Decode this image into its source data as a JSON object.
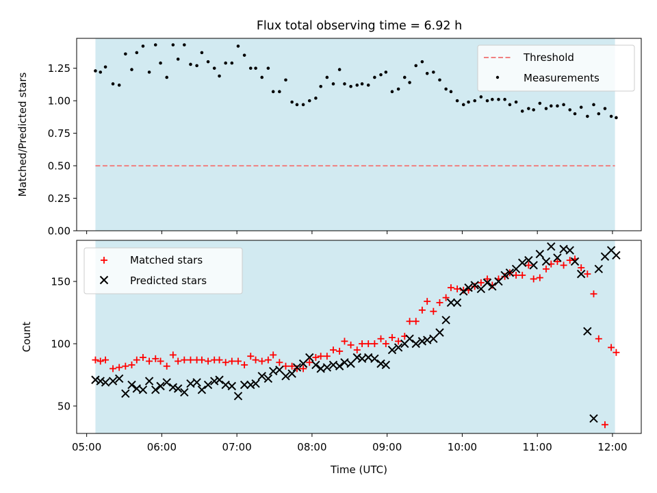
{
  "title": "Flux total observing time = 6.92 h",
  "colors": {
    "shade": "#add8e6",
    "threshold": "#f08080",
    "matched": "#ff0000",
    "predicted": "#000000",
    "measurement": "#000000"
  },
  "chart_data": [
    {
      "type": "scatter",
      "title": "Flux total observing time = 6.92 h",
      "xlabel": "",
      "ylabel": "Matched/Predicted stars",
      "xlim": [
        "04:52",
        "12:23"
      ],
      "ylim": [
        0,
        1.48
      ],
      "yticks": [
        0.0,
        0.25,
        0.5,
        0.75,
        1.0,
        1.25
      ],
      "ytick_labels": [
        "0.00",
        "0.25",
        "0.50",
        "0.75",
        "1.00",
        "1.25"
      ],
      "shaded_interval": [
        "05:07",
        "12:02"
      ],
      "threshold": {
        "name": "Threshold",
        "value": 0.5,
        "style": "dashed"
      },
      "legend": {
        "position": "top-right",
        "entries": [
          "Threshold",
          "Measurements"
        ]
      },
      "series": [
        {
          "name": "Measurements",
          "marker": "dot",
          "x": [
            "05:07",
            "05:11",
            "05:15",
            "05:21",
            "05:26",
            "05:31",
            "05:36",
            "05:40",
            "05:45",
            "05:50",
            "05:55",
            "05:59",
            "06:04",
            "06:09",
            "06:13",
            "06:18",
            "06:23",
            "06:28",
            "06:32",
            "06:37",
            "06:42",
            "06:46",
            "06:51",
            "06:56",
            "07:01",
            "07:06",
            "07:11",
            "07:15",
            "07:20",
            "07:25",
            "07:29",
            "07:34",
            "07:39",
            "07:44",
            "07:48",
            "07:53",
            "07:58",
            "08:03",
            "08:07",
            "08:12",
            "08:17",
            "08:22",
            "08:26",
            "08:31",
            "08:36",
            "08:40",
            "08:45",
            "08:50",
            "08:55",
            "08:59",
            "09:04",
            "09:09",
            "09:14",
            "09:18",
            "09:23",
            "09:28",
            "09:32",
            "09:37",
            "09:42",
            "09:47",
            "09:51",
            "09:56",
            "10:01",
            "10:05",
            "10:10",
            "10:15",
            "10:20",
            "10:24",
            "10:29",
            "10:34",
            "10:38",
            "10:43",
            "10:48",
            "10:53",
            "10:57",
            "11:02",
            "11:07",
            "11:11",
            "11:16",
            "11:21",
            "11:26",
            "11:30",
            "11:35",
            "11:40",
            "11:45",
            "11:49",
            "11:54",
            "11:59",
            "12:03"
          ],
          "y": [
            1.23,
            1.22,
            1.26,
            1.13,
            1.12,
            1.36,
            1.24,
            1.37,
            1.42,
            1.22,
            1.43,
            1.29,
            1.18,
            1.43,
            1.32,
            1.43,
            1.28,
            1.27,
            1.37,
            1.3,
            1.25,
            1.19,
            1.29,
            1.29,
            1.42,
            1.35,
            1.25,
            1.25,
            1.18,
            1.25,
            1.07,
            1.07,
            1.16,
            0.99,
            0.97,
            0.97,
            1.0,
            1.02,
            1.11,
            1.18,
            1.13,
            1.24,
            1.13,
            1.11,
            1.12,
            1.13,
            1.12,
            1.18,
            1.2,
            1.22,
            1.07,
            1.09,
            1.18,
            1.14,
            1.27,
            1.3,
            1.21,
            1.22,
            1.16,
            1.09,
            1.07,
            1.0,
            0.97,
            0.99,
            1.0,
            1.03,
            1.0,
            1.01,
            1.01,
            1.01,
            0.97,
            0.99,
            0.92,
            0.94,
            0.93,
            0.98,
            0.94,
            0.96,
            0.96,
            0.97,
            0.93,
            0.9,
            0.95,
            0.88,
            0.97,
            0.9,
            0.94,
            0.88,
            0.87
          ]
        }
      ]
    },
    {
      "type": "scatter",
      "title": "",
      "xlabel": "Time (UTC)",
      "ylabel": "Count",
      "xlim": [
        "04:52",
        "12:23"
      ],
      "ylim": [
        28,
        183
      ],
      "yticks": [
        50,
        100,
        150
      ],
      "xticks": [
        "05:00",
        "06:00",
        "07:00",
        "08:00",
        "09:00",
        "10:00",
        "11:00",
        "12:00"
      ],
      "shaded_interval": [
        "05:07",
        "12:02"
      ],
      "legend": {
        "position": "top-left",
        "entries": [
          "Matched stars",
          "Predicted stars"
        ]
      },
      "series": [
        {
          "name": "Matched stars",
          "marker": "plus",
          "x": [
            "05:07",
            "05:11",
            "05:15",
            "05:21",
            "05:26",
            "05:31",
            "05:36",
            "05:40",
            "05:45",
            "05:50",
            "05:55",
            "05:59",
            "06:04",
            "06:09",
            "06:13",
            "06:18",
            "06:23",
            "06:28",
            "06:32",
            "06:37",
            "06:42",
            "06:46",
            "06:51",
            "06:56",
            "07:01",
            "07:06",
            "07:11",
            "07:15",
            "07:20",
            "07:25",
            "07:29",
            "07:34",
            "07:39",
            "07:44",
            "07:48",
            "07:53",
            "07:58",
            "08:03",
            "08:07",
            "08:12",
            "08:17",
            "08:22",
            "08:26",
            "08:31",
            "08:36",
            "08:40",
            "08:45",
            "08:50",
            "08:55",
            "08:59",
            "09:04",
            "09:09",
            "09:14",
            "09:18",
            "09:23",
            "09:28",
            "09:32",
            "09:37",
            "09:42",
            "09:47",
            "09:51",
            "09:56",
            "10:01",
            "10:05",
            "10:10",
            "10:15",
            "10:20",
            "10:24",
            "10:29",
            "10:34",
            "10:38",
            "10:43",
            "10:48",
            "10:53",
            "10:57",
            "11:02",
            "11:07",
            "11:11",
            "11:16",
            "11:21",
            "11:26",
            "11:30",
            "11:35",
            "11:40",
            "11:45",
            "11:49",
            "11:54",
            "11:59",
            "12:03"
          ],
          "y": [
            87,
            86,
            87,
            80,
            81,
            82,
            83,
            87,
            89,
            86,
            88,
            86,
            82,
            91,
            86,
            87,
            87,
            87,
            87,
            86,
            87,
            87,
            85,
            86,
            86,
            83,
            90,
            87,
            86,
            87,
            91,
            85,
            82,
            82,
            80,
            80,
            85,
            89,
            90,
            90,
            95,
            94,
            102,
            99,
            95,
            100,
            100,
            100,
            104,
            100,
            105,
            102,
            106,
            118,
            118,
            127,
            134,
            126,
            133,
            137,
            145,
            144,
            143,
            143,
            146,
            149,
            152,
            147,
            152,
            154,
            157,
            155,
            155,
            163,
            152,
            153,
            160,
            164,
            166,
            163,
            167,
            168,
            161,
            156,
            140,
            104,
            35,
            97,
            93
          ]
        },
        {
          "name": "Predicted stars",
          "marker": "x",
          "x": [
            "05:07",
            "05:11",
            "05:15",
            "05:21",
            "05:26",
            "05:31",
            "05:36",
            "05:40",
            "05:45",
            "05:50",
            "05:55",
            "05:59",
            "06:04",
            "06:09",
            "06:13",
            "06:18",
            "06:23",
            "06:28",
            "06:32",
            "06:37",
            "06:42",
            "06:46",
            "06:51",
            "06:56",
            "07:01",
            "07:06",
            "07:11",
            "07:15",
            "07:20",
            "07:25",
            "07:29",
            "07:34",
            "07:39",
            "07:44",
            "07:48",
            "07:53",
            "07:58",
            "08:03",
            "08:07",
            "08:12",
            "08:17",
            "08:22",
            "08:26",
            "08:31",
            "08:36",
            "08:40",
            "08:45",
            "08:50",
            "08:55",
            "08:59",
            "09:04",
            "09:09",
            "09:14",
            "09:18",
            "09:23",
            "09:28",
            "09:32",
            "09:37",
            "09:42",
            "09:47",
            "09:51",
            "09:56",
            "10:01",
            "10:05",
            "10:10",
            "10:15",
            "10:20",
            "10:24",
            "10:29",
            "10:34",
            "10:38",
            "10:43",
            "10:48",
            "10:53",
            "10:57",
            "11:02",
            "11:07",
            "11:11",
            "11:16",
            "11:21",
            "11:26",
            "11:30",
            "11:35",
            "11:40",
            "11:45",
            "11:49",
            "11:54",
            "11:59",
            "12:03"
          ],
          "y": [
            71,
            70,
            69,
            70,
            72,
            60,
            67,
            64,
            63,
            70,
            63,
            66,
            69,
            65,
            64,
            61,
            68,
            69,
            63,
            67,
            70,
            71,
            67,
            66,
            58,
            67,
            67,
            68,
            74,
            72,
            78,
            79,
            74,
            76,
            81,
            84,
            89,
            83,
            80,
            81,
            83,
            82,
            85,
            84,
            89,
            88,
            89,
            88,
            84,
            83,
            95,
            97,
            100,
            104,
            100,
            102,
            103,
            104,
            109,
            119,
            133,
            133,
            142,
            145,
            147,
            144,
            149,
            146,
            150,
            155,
            157,
            160,
            165,
            167,
            163,
            172,
            166,
            178,
            169,
            176,
            175,
            166,
            156,
            110,
            40,
            160,
            170,
            175,
            171
          ]
        }
      ]
    }
  ]
}
